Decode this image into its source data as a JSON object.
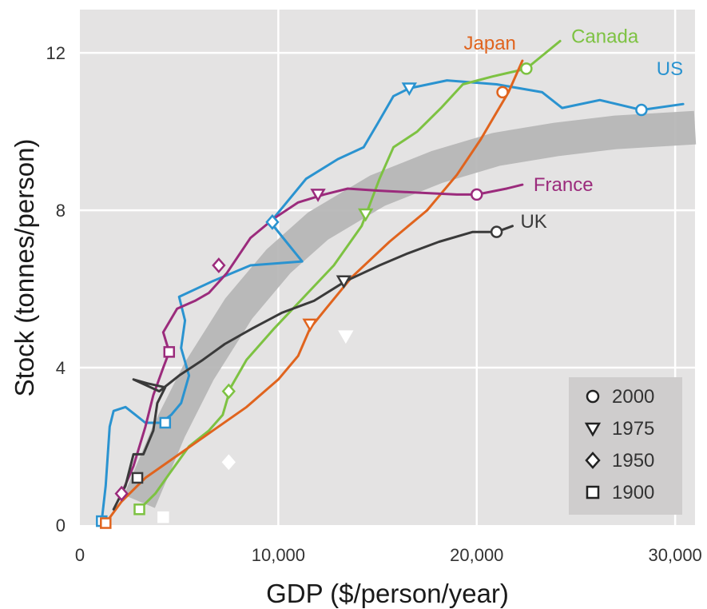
{
  "chart_data": {
    "type": "line",
    "xlabel": "GDP ($/person/year)",
    "ylabel": "Stock (tonnes/person)",
    "xlim": [
      0,
      31000
    ],
    "ylim": [
      0,
      13.1
    ],
    "xticks": [
      0,
      10000,
      20000,
      30000
    ],
    "xtick_labels": [
      "0",
      "10,000",
      "20,000",
      "30,000"
    ],
    "yticks": [
      0,
      4,
      8,
      12
    ],
    "ytick_labels": [
      "0",
      "4",
      "8",
      "12"
    ],
    "grid": true,
    "legend": {
      "placement": "bottom-right",
      "entries": [
        {
          "marker": "circle",
          "label": "2000"
        },
        {
          "marker": "triangle-down",
          "label": "1975"
        },
        {
          "marker": "diamond",
          "label": "1950"
        },
        {
          "marker": "square",
          "label": "1900"
        }
      ]
    },
    "trend_band": {
      "color": "#b4b4b4",
      "points": [
        [
          3000,
          0.6
        ],
        [
          4500,
          2.4
        ],
        [
          6000,
          3.9
        ],
        [
          8000,
          5.5
        ],
        [
          10000,
          6.7
        ],
        [
          12000,
          7.6
        ],
        [
          15000,
          8.5
        ],
        [
          18000,
          9.1
        ],
        [
          21000,
          9.55
        ],
        [
          24000,
          9.8
        ],
        [
          27000,
          9.98
        ],
        [
          31000,
          10.1
        ]
      ]
    },
    "series": [
      {
        "name": "US",
        "color": "#2a93d0",
        "points": [
          [
            1100,
            0.1
          ],
          [
            1300,
            1.0
          ],
          [
            1500,
            2.5
          ],
          [
            1700,
            2.9
          ],
          [
            2300,
            3.0
          ],
          [
            2800,
            2.8
          ],
          [
            3300,
            2.6
          ],
          [
            4100,
            2.6
          ],
          [
            4600,
            2.8
          ],
          [
            5100,
            3.1
          ],
          [
            5500,
            3.8
          ],
          [
            5100,
            4.5
          ],
          [
            5300,
            5.2
          ],
          [
            5000,
            5.8
          ],
          [
            6700,
            6.2
          ],
          [
            8600,
            6.6
          ],
          [
            11200,
            6.7
          ],
          [
            10400,
            7.2
          ],
          [
            9600,
            7.7
          ],
          [
            11400,
            8.8
          ],
          [
            13000,
            9.3
          ],
          [
            14300,
            9.6
          ],
          [
            15000,
            10.2
          ],
          [
            15800,
            10.9
          ],
          [
            16600,
            11.1
          ],
          [
            18500,
            11.3
          ],
          [
            21000,
            11.2
          ],
          [
            23300,
            11.0
          ],
          [
            24300,
            10.6
          ],
          [
            26200,
            10.8
          ],
          [
            28300,
            10.55
          ],
          [
            30400,
            10.7
          ]
        ],
        "markers": [
          {
            "x": 1100,
            "y": 0.1,
            "marker": "square"
          },
          {
            "x": 4300,
            "y": 2.6,
            "marker": "square"
          },
          {
            "x": 9700,
            "y": 7.7,
            "marker": "diamond"
          },
          {
            "x": 16600,
            "y": 11.1,
            "marker": "triangle-down"
          },
          {
            "x": 28300,
            "y": 10.55,
            "marker": "circle"
          }
        ]
      },
      {
        "name": "Canada",
        "color": "#7dc242",
        "points": [
          [
            3000,
            0.4
          ],
          [
            3800,
            0.8
          ],
          [
            4500,
            1.3
          ],
          [
            5500,
            2.0
          ],
          [
            6500,
            2.4
          ],
          [
            7200,
            2.8
          ],
          [
            7600,
            3.5
          ],
          [
            8400,
            4.2
          ],
          [
            9800,
            5.0
          ],
          [
            11300,
            5.8
          ],
          [
            12800,
            6.6
          ],
          [
            14200,
            7.6
          ],
          [
            15100,
            8.8
          ],
          [
            15800,
            9.6
          ],
          [
            17000,
            10.0
          ],
          [
            18200,
            10.6
          ],
          [
            19300,
            11.2
          ],
          [
            20800,
            11.4
          ],
          [
            22500,
            11.6
          ],
          [
            24200,
            12.3
          ]
        ],
        "markers": [
          {
            "x": 3000,
            "y": 0.4,
            "marker": "square"
          },
          {
            "x": 7500,
            "y": 3.4,
            "marker": "diamond"
          },
          {
            "x": 14400,
            "y": 7.9,
            "marker": "triangle-down"
          },
          {
            "x": 22500,
            "y": 11.6,
            "marker": "circle"
          }
        ]
      },
      {
        "name": "Japan",
        "color": "#e0641e",
        "points": [
          [
            1300,
            0.05
          ],
          [
            2100,
            0.6
          ],
          [
            3300,
            1.2
          ],
          [
            5000,
            1.8
          ],
          [
            6700,
            2.4
          ],
          [
            8400,
            3.0
          ],
          [
            10000,
            3.7
          ],
          [
            11000,
            4.3
          ],
          [
            11600,
            5.0
          ],
          [
            12400,
            5.5
          ],
          [
            13700,
            6.3
          ],
          [
            15600,
            7.2
          ],
          [
            17500,
            8.0
          ],
          [
            19000,
            8.9
          ],
          [
            20200,
            9.8
          ],
          [
            20900,
            10.4
          ],
          [
            21600,
            11.0
          ],
          [
            22300,
            11.8
          ]
        ],
        "markers": [
          {
            "x": 1300,
            "y": 0.05,
            "marker": "square"
          },
          {
            "x": 11600,
            "y": 5.1,
            "marker": "triangle-down"
          },
          {
            "x": 21300,
            "y": 11.0,
            "marker": "circle"
          }
        ]
      },
      {
        "name": "France",
        "color": "#9b2b7c",
        "points": [
          [
            2100,
            0.8
          ],
          [
            2700,
            1.5
          ],
          [
            3300,
            2.5
          ],
          [
            3700,
            3.3
          ],
          [
            4200,
            4.0
          ],
          [
            4500,
            4.4
          ],
          [
            4200,
            4.9
          ],
          [
            4900,
            5.5
          ],
          [
            5800,
            5.7
          ],
          [
            6500,
            5.9
          ],
          [
            7400,
            6.4
          ],
          [
            8600,
            7.3
          ],
          [
            9800,
            7.8
          ],
          [
            11000,
            8.2
          ],
          [
            12300,
            8.4
          ],
          [
            13500,
            8.55
          ],
          [
            15000,
            8.5
          ],
          [
            17000,
            8.45
          ],
          [
            19000,
            8.4
          ],
          [
            20000,
            8.4
          ],
          [
            21500,
            8.55
          ],
          [
            22300,
            8.65
          ]
        ],
        "markers": [
          {
            "x": 2100,
            "y": 0.8,
            "marker": "diamond"
          },
          {
            "x": 4500,
            "y": 4.4,
            "marker": "square"
          },
          {
            "x": 7000,
            "y": 6.6,
            "marker": "diamond"
          },
          {
            "x": 12000,
            "y": 8.4,
            "marker": "triangle-down"
          },
          {
            "x": 20000,
            "y": 8.4,
            "marker": "circle"
          }
        ]
      },
      {
        "name": "UK",
        "color": "#3a3a3a",
        "points": [
          [
            1700,
            0.4
          ],
          [
            2300,
            1.0
          ],
          [
            2700,
            1.8
          ],
          [
            3200,
            1.8
          ],
          [
            3700,
            2.4
          ],
          [
            3900,
            3.1
          ],
          [
            4300,
            3.5
          ],
          [
            3400,
            3.6
          ],
          [
            2700,
            3.7
          ],
          [
            4000,
            3.4
          ],
          [
            5000,
            3.8
          ],
          [
            6200,
            4.2
          ],
          [
            7300,
            4.6
          ],
          [
            8700,
            5.0
          ],
          [
            10200,
            5.4
          ],
          [
            11800,
            5.7
          ],
          [
            13400,
            6.2
          ],
          [
            15100,
            6.6
          ],
          [
            16500,
            6.9
          ],
          [
            18100,
            7.2
          ],
          [
            19800,
            7.45
          ],
          [
            21000,
            7.45
          ],
          [
            21800,
            7.6
          ]
        ],
        "markers": [
          {
            "x": 2900,
            "y": 1.2,
            "marker": "square"
          },
          {
            "x": 13300,
            "y": 6.2,
            "marker": "triangle-down"
          },
          {
            "x": 21000,
            "y": 7.45,
            "marker": "circle"
          }
        ]
      }
    ],
    "extra_markers": [
      {
        "x": 4200,
        "y": 0.2,
        "marker": "square",
        "color": "#ffffff"
      },
      {
        "x": 7500,
        "y": 1.6,
        "marker": "diamond",
        "color": "#ffffff"
      },
      {
        "x": 13400,
        "y": 4.8,
        "marker": "triangle-down",
        "color": "#ffffff"
      }
    ]
  }
}
